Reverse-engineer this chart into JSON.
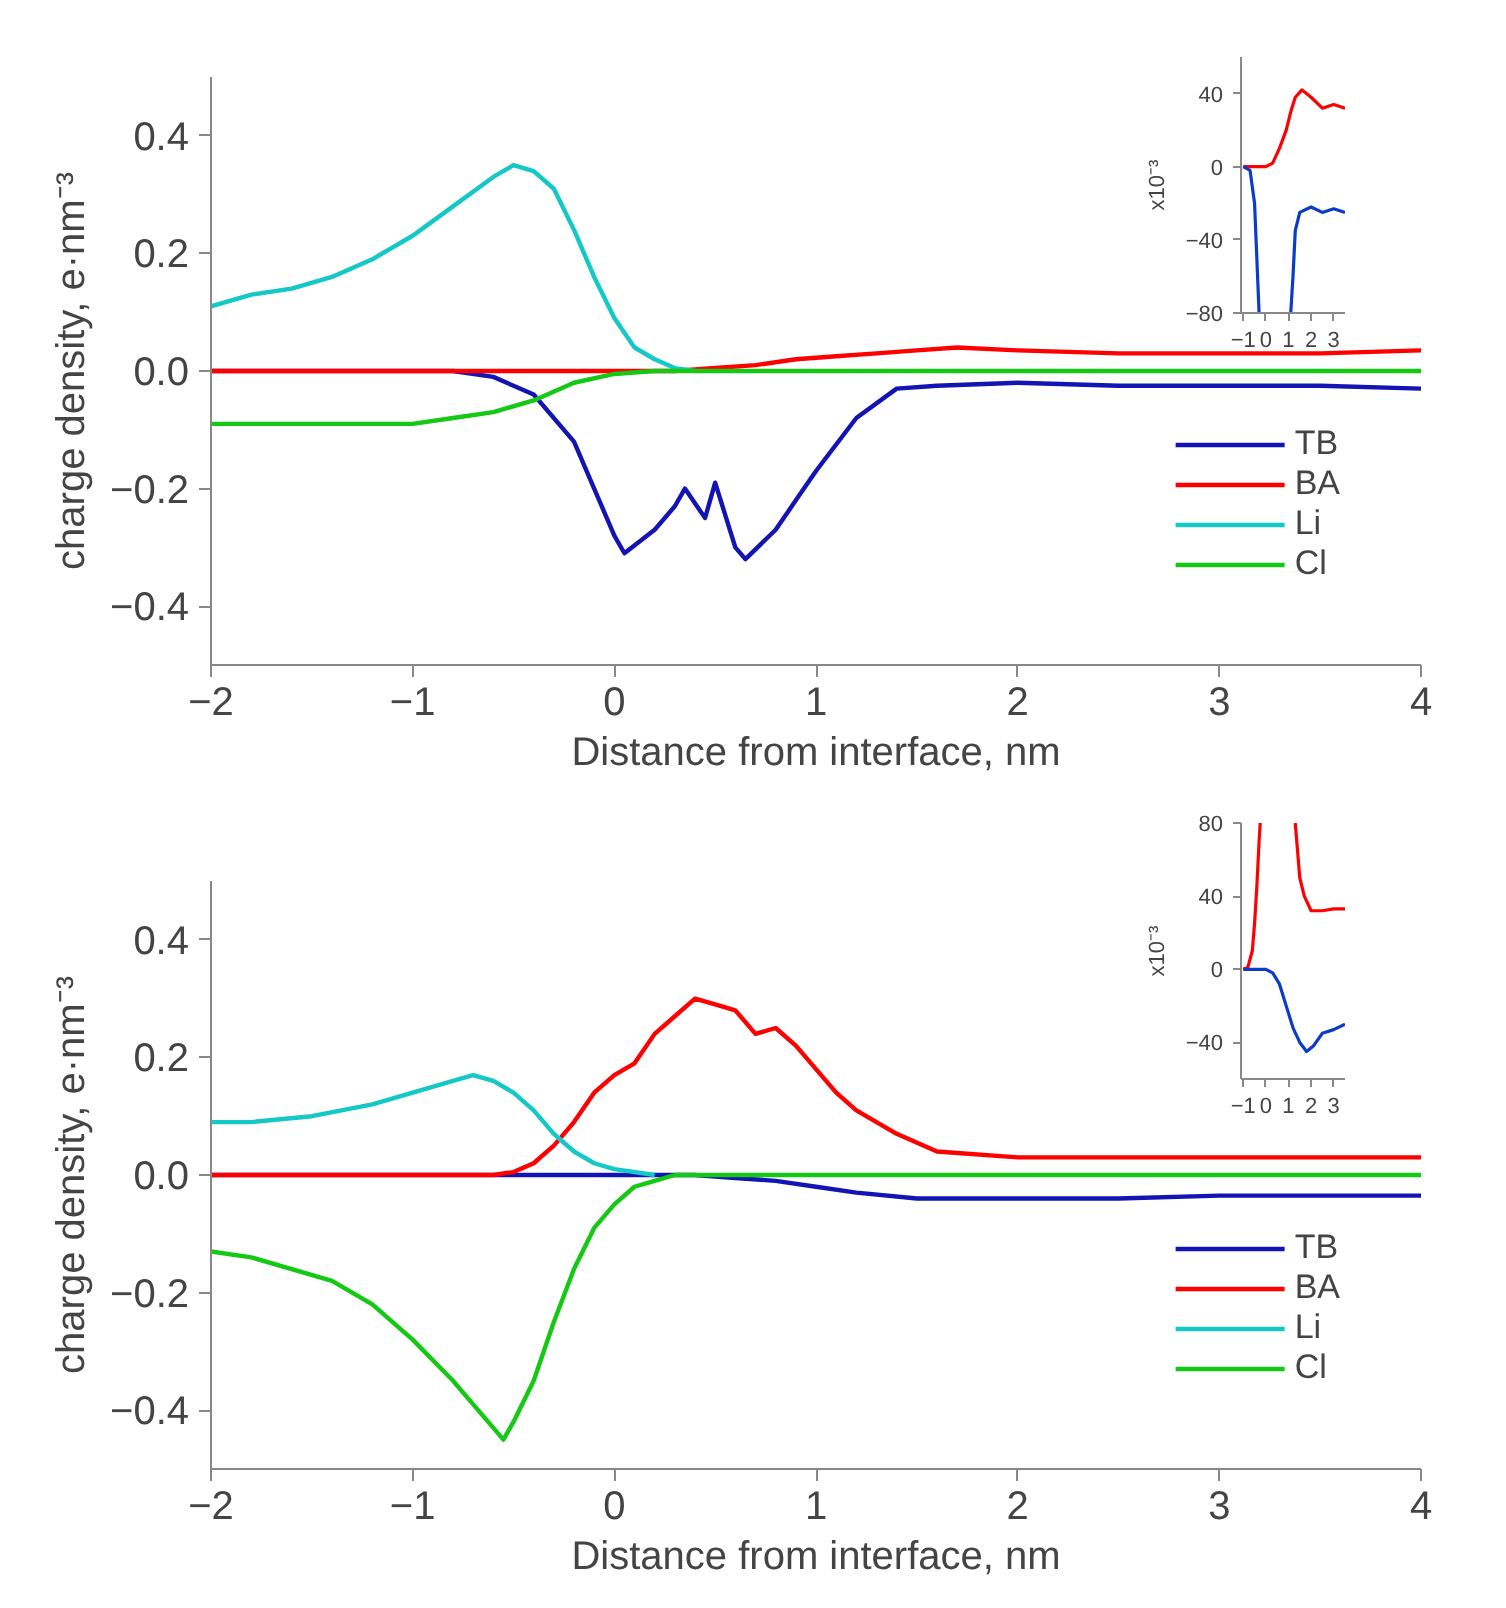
{
  "chart_data": [
    {
      "type": "line",
      "xlabel": "Distance from interface, nm",
      "ylabel": "charge density, e·nm⁻³",
      "xlim": [
        -2,
        4
      ],
      "ylim": [
        -0.5,
        0.5
      ],
      "xticks": [
        -2,
        -1,
        0,
        1,
        2,
        3,
        4
      ],
      "yticks": [
        -0.4,
        -0.2,
        {
          "value": 0,
          "label": "0.0"
        },
        0.2,
        0.4
      ],
      "legend": "bottom right",
      "series": [
        {
          "name": "TB",
          "color": "#1414b4",
          "x": [
            -2,
            -0.8,
            -0.6,
            -0.4,
            -0.2,
            -0.1,
            0,
            0.05,
            0.2,
            0.3,
            0.35,
            0.45,
            0.5,
            0.6,
            0.65,
            0.8,
            0.9,
            1.0,
            1.2,
            1.4,
            1.6,
            2,
            2.5,
            3,
            3.5,
            4
          ],
          "values": [
            0,
            0,
            -0.01,
            -0.04,
            -0.12,
            -0.2,
            -0.28,
            -0.31,
            -0.27,
            -0.23,
            -0.2,
            -0.25,
            -0.19,
            -0.3,
            -0.32,
            -0.27,
            -0.22,
            -0.17,
            -0.08,
            -0.03,
            -0.025,
            -0.02,
            -0.025,
            -0.025,
            -0.025,
            -0.03
          ]
        },
        {
          "name": "BA",
          "color": "#ff0000",
          "x": [
            -2,
            0.3,
            0.5,
            0.7,
            0.9,
            1.1,
            1.3,
            1.5,
            1.7,
            2,
            2.5,
            3,
            3.5,
            4
          ],
          "values": [
            0,
            0,
            0.005,
            0.01,
            0.02,
            0.025,
            0.03,
            0.035,
            0.04,
            0.035,
            0.03,
            0.03,
            0.03,
            0.035
          ]
        },
        {
          "name": "Li",
          "color": "#14c8c8",
          "x": [
            -2,
            -1.8,
            -1.6,
            -1.4,
            -1.2,
            -1.0,
            -0.8,
            -0.6,
            -0.5,
            -0.4,
            -0.3,
            -0.2,
            -0.1,
            0,
            0.1,
            0.2,
            0.3,
            0.4
          ],
          "values": [
            0.11,
            0.13,
            0.14,
            0.16,
            0.19,
            0.23,
            0.28,
            0.33,
            0.35,
            0.34,
            0.31,
            0.24,
            0.16,
            0.09,
            0.04,
            0.02,
            0.005,
            0
          ]
        },
        {
          "name": "Cl",
          "color": "#14c814",
          "x": [
            -2,
            -1.5,
            -1,
            -0.8,
            -0.6,
            -0.4,
            -0.2,
            0,
            0.2,
            4
          ],
          "values": [
            -0.09,
            -0.09,
            -0.09,
            -0.08,
            -0.07,
            -0.05,
            -0.02,
            -0.005,
            0,
            0
          ]
        }
      ]
    },
    {
      "type": "line",
      "ylabel": "x10⁻³",
      "xlim": [
        -1.1,
        3.5
      ],
      "ylim": [
        -80,
        60
      ],
      "xticks": [
        -1,
        0,
        1,
        2,
        3
      ],
      "yticks": [
        -80,
        -40,
        0,
        40
      ],
      "series": [
        {
          "color": "#ff0000",
          "x": [
            -1,
            0,
            0.3,
            0.6,
            0.9,
            1.1,
            1.3,
            1.6,
            2,
            2.5,
            3,
            3.5
          ],
          "values": [
            0,
            0,
            2,
            10,
            20,
            30,
            38,
            42,
            38,
            32,
            34,
            32
          ]
        },
        {
          "color": "#0a3cc8",
          "x": [
            -1,
            -0.7,
            -0.5,
            -0.4,
            -0.3,
            0.4,
            1.1,
            1.2,
            1.3,
            1.5,
            2,
            2.5,
            3,
            3.5
          ],
          "values": [
            0,
            -2,
            -20,
            -50,
            -80,
            null,
            -80,
            -60,
            -35,
            -25,
            -22,
            -25,
            -23,
            -25
          ]
        }
      ]
    },
    {
      "type": "line",
      "xlabel": "Distance from interface, nm",
      "ylabel": "charge density, e·nm⁻³",
      "xlim": [
        -2,
        4
      ],
      "ylim": [
        -0.5,
        0.5
      ],
      "xticks": [
        -2,
        -1,
        0,
        1,
        2,
        3,
        4
      ],
      "yticks": [
        -0.4,
        -0.2,
        {
          "value": 0,
          "label": "0.0"
        },
        0.2,
        0.4
      ],
      "legend": "bottom right",
      "series": [
        {
          "name": "TB",
          "color": "#1414b4",
          "x": [
            -2,
            0.4,
            0.6,
            0.8,
            1,
            1.2,
            1.5,
            2,
            2.5,
            3,
            3.5,
            4
          ],
          "values": [
            0,
            0,
            -0.005,
            -0.01,
            -0.02,
            -0.03,
            -0.04,
            -0.04,
            -0.04,
            -0.035,
            -0.035,
            -0.035
          ]
        },
        {
          "name": "BA",
          "color": "#ff0000",
          "x": [
            -2,
            -0.6,
            -0.5,
            -0.4,
            -0.3,
            -0.2,
            -0.1,
            0,
            0.1,
            0.2,
            0.3,
            0.4,
            0.5,
            0.6,
            0.7,
            0.8,
            0.9,
            1.0,
            1.1,
            1.2,
            1.4,
            1.6,
            2,
            2.5,
            3,
            4
          ],
          "values": [
            0,
            0,
            0.005,
            0.02,
            0.05,
            0.09,
            0.14,
            0.17,
            0.19,
            0.24,
            0.27,
            0.3,
            0.29,
            0.28,
            0.24,
            0.25,
            0.22,
            0.18,
            0.14,
            0.11,
            0.07,
            0.04,
            0.03,
            0.03,
            0.03,
            0.03
          ]
        },
        {
          "name": "Li",
          "color": "#14c8c8",
          "x": [
            -2,
            -1.8,
            -1.5,
            -1.2,
            -1,
            -0.8,
            -0.7,
            -0.6,
            -0.5,
            -0.4,
            -0.3,
            -0.2,
            -0.1,
            0,
            0.2
          ],
          "values": [
            0.09,
            0.09,
            0.1,
            0.12,
            0.14,
            0.16,
            0.17,
            0.16,
            0.14,
            0.11,
            0.07,
            0.04,
            0.02,
            0.01,
            0
          ]
        },
        {
          "name": "Cl",
          "color": "#14c814",
          "x": [
            -2,
            -1.8,
            -1.6,
            -1.4,
            -1.2,
            -1,
            -0.8,
            -0.7,
            -0.6,
            -0.55,
            -0.5,
            -0.4,
            -0.3,
            -0.2,
            -0.1,
            0,
            0.1,
            0.2,
            0.3,
            4
          ],
          "values": [
            -0.13,
            -0.14,
            -0.16,
            -0.18,
            -0.22,
            -0.28,
            -0.35,
            -0.39,
            -0.43,
            -0.45,
            -0.42,
            -0.35,
            -0.25,
            -0.16,
            -0.09,
            -0.05,
            -0.02,
            -0.01,
            0,
            0
          ]
        }
      ]
    },
    {
      "type": "line",
      "ylabel": "x10⁻³",
      "xlim": [
        -1.1,
        3.5
      ],
      "ylim": [
        -60,
        80
      ],
      "xticks": [
        -1,
        0,
        1,
        2,
        3
      ],
      "yticks": [
        -40,
        0,
        40,
        80
      ],
      "series": [
        {
          "color": "#ff0000",
          "x": [
            -1,
            -0.8,
            -0.6,
            -0.5,
            -0.4,
            -0.3,
            -0.25,
            0.5,
            1.3,
            1.4,
            1.5,
            1.7,
            2,
            2.5,
            3,
            3.5
          ],
          "values": [
            0,
            1,
            10,
            25,
            45,
            70,
            80,
            null,
            80,
            65,
            50,
            40,
            32,
            32,
            33,
            33
          ]
        },
        {
          "color": "#0a3cc8",
          "x": [
            -1,
            0,
            0.3,
            0.6,
            0.9,
            1.2,
            1.5,
            1.8,
            2.1,
            2.5,
            3,
            3.5
          ],
          "values": [
            0,
            0,
            -2,
            -8,
            -20,
            -32,
            -40,
            -45,
            -42,
            -35,
            -33,
            -30
          ]
        }
      ]
    }
  ]
}
